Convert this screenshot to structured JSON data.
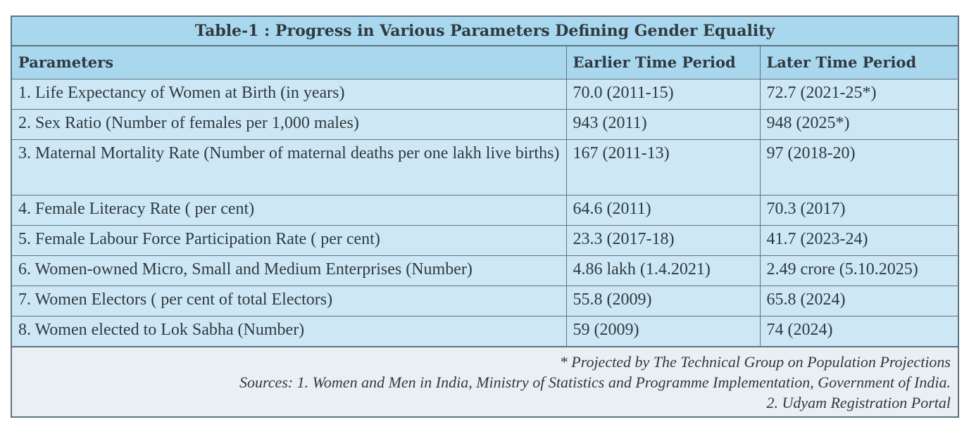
{
  "table": {
    "title": "Table-1 : Progress in Various Parameters Defining Gender Equality",
    "headers": [
      "Parameters",
      "Earlier Time Period",
      "Later Time Period"
    ],
    "rows": [
      [
        "1. Life Expectancy of Women at Birth (in years)",
        "70.0 (2011-15)",
        "72.7 (2021-25*)"
      ],
      [
        "2. Sex Ratio (Number of females per 1,000 males)",
        "943 (2011)",
        "948 (2025*)"
      ],
      [
        "3. Maternal Mortality Rate (Number of maternal deaths per one lakh live births)",
        "167 (2011-13)",
        "97 (2018-20)"
      ],
      [
        "4. Female Literacy Rate ( per cent)",
        "64.6 (2011)",
        "70.3 (2017)"
      ],
      [
        "5. Female Labour Force Participation Rate ( per cent)",
        "23.3 (2017-18)",
        "41.7 (2023-24)"
      ],
      [
        "6. Women-owned Micro, Small and Medium Enterprises (Number)",
        "4.86 lakh (1.4.2021)",
        "2.49 crore (5.10.2025)"
      ],
      [
        "7. Women Electors ( per cent of total Electors)",
        "55.8 (2009)",
        "65.8 (2024)"
      ],
      [
        "8. Women elected to Lok Sabha (Number)",
        "59 (2009)",
        "74 (2024)"
      ]
    ]
  },
  "footnotes": {
    "projection_note": "* Projected by The Technical Group on Population Projections",
    "sources_1": "Sources: 1. Women and Men in India, Ministry of Statistics and Programme Implementation, Government of India.",
    "sources_2": "2. Udyam Registration Portal"
  }
}
